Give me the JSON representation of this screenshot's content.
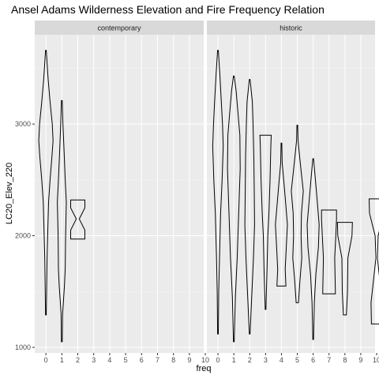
{
  "chart_data": {
    "type": "violin",
    "title": "Ansel Adams Wilderness Elevation and Fire Frequency Relation",
    "xlabel": "freq",
    "ylabel": "LC20_Elev_220",
    "x_ticks": [
      "0",
      "1",
      "2",
      "3",
      "4",
      "5",
      "6",
      "7",
      "8",
      "9",
      "10"
    ],
    "y_ticks": [
      1000,
      2000,
      3000
    ],
    "ylim": [
      950,
      3800
    ],
    "grid": true,
    "panels": [
      {
        "name": "contemporary",
        "violins": [
          {
            "freq": 0,
            "profile": [
              [
                1290,
                0.05
              ],
              [
                1800,
                0.15
              ],
              [
                2300,
                0.35
              ],
              [
                2500,
                0.55
              ],
              [
                2700,
                0.8
              ],
              [
                2850,
                0.95
              ],
              [
                3000,
                0.85
              ],
              [
                3200,
                0.55
              ],
              [
                3400,
                0.3
              ],
              [
                3550,
                0.15
              ],
              [
                3660,
                0.05
              ]
            ]
          },
          {
            "freq": 1,
            "profile": [
              [
                1050,
                0.05
              ],
              [
                1300,
                0.1
              ],
              [
                1550,
                0.35
              ],
              [
                1700,
                0.45
              ],
              [
                2000,
                0.5
              ],
              [
                2300,
                0.6
              ],
              [
                2500,
                0.45
              ],
              [
                2750,
                0.3
              ],
              [
                3000,
                0.15
              ],
              [
                3210,
                0.05
              ]
            ]
          },
          {
            "freq": 2,
            "profile": [
              [
                1970,
                0.95
              ],
              [
                2050,
                0.95
              ],
              [
                2150,
                0.2
              ],
              [
                2250,
                0.95
              ],
              [
                2320,
                0.95
              ]
            ]
          }
        ]
      },
      {
        "name": "historic",
        "violins": [
          {
            "freq": 0,
            "profile": [
              [
                1120,
                0.05
              ],
              [
                1500,
                0.1
              ],
              [
                1800,
                0.2
              ],
              [
                2200,
                0.35
              ],
              [
                2500,
                0.55
              ],
              [
                2800,
                0.7
              ],
              [
                3000,
                0.6
              ],
              [
                3200,
                0.45
              ],
              [
                3450,
                0.25
              ],
              [
                3660,
                0.05
              ]
            ]
          },
          {
            "freq": 1,
            "profile": [
              [
                1050,
                0.05
              ],
              [
                1450,
                0.2
              ],
              [
                1800,
                0.45
              ],
              [
                2200,
                0.65
              ],
              [
                2600,
                0.85
              ],
              [
                2900,
                0.8
              ],
              [
                3100,
                0.55
              ],
              [
                3300,
                0.3
              ],
              [
                3430,
                0.05
              ]
            ]
          },
          {
            "freq": 2,
            "profile": [
              [
                1120,
                0.05
              ],
              [
                1500,
                0.3
              ],
              [
                1800,
                0.5
              ],
              [
                2100,
                0.65
              ],
              [
                2400,
                0.6
              ],
              [
                2700,
                0.55
              ],
              [
                3000,
                0.45
              ],
              [
                3200,
                0.35
              ],
              [
                3400,
                0.05
              ]
            ]
          },
          {
            "freq": 3,
            "profile": [
              [
                1340,
                0.05
              ],
              [
                1700,
                0.2
              ],
              [
                2000,
                0.3
              ],
              [
                2200,
                0.45
              ],
              [
                2500,
                0.6
              ],
              [
                2800,
                0.7
              ],
              [
                2900,
                0.75
              ]
            ]
          },
          {
            "freq": 4,
            "profile": [
              [
                1550,
                0.6
              ],
              [
                1700,
                0.5
              ],
              [
                1900,
                0.65
              ],
              [
                2100,
                0.8
              ],
              [
                2300,
                0.55
              ],
              [
                2500,
                0.3
              ],
              [
                2650,
                0.1
              ],
              [
                2830,
                0.05
              ]
            ]
          },
          {
            "freq": 5,
            "profile": [
              [
                1400,
                0.15
              ],
              [
                1600,
                0.35
              ],
              [
                1800,
                0.6
              ],
              [
                2000,
                0.5
              ],
              [
                2200,
                0.55
              ],
              [
                2400,
                0.8
              ],
              [
                2650,
                0.4
              ],
              [
                2850,
                0.1
              ],
              [
                2990,
                0.05
              ]
            ]
          },
          {
            "freq": 6,
            "profile": [
              [
                1070,
                0.05
              ],
              [
                1400,
                0.15
              ],
              [
                1650,
                0.35
              ],
              [
                1900,
                0.7
              ],
              [
                2100,
                0.8
              ],
              [
                2300,
                0.55
              ],
              [
                2500,
                0.3
              ],
              [
                2690,
                0.05
              ]
            ]
          },
          {
            "freq": 7,
            "profile": [
              [
                1480,
                0.85
              ],
              [
                1800,
                0.75
              ],
              [
                2000,
                0.9
              ],
              [
                2150,
                1.0
              ],
              [
                2230,
                1.0
              ]
            ]
          },
          {
            "freq": 8,
            "profile": [
              [
                1290,
                0.2
              ],
              [
                1500,
                0.35
              ],
              [
                1800,
                0.4
              ],
              [
                2000,
                0.95
              ],
              [
                2120,
                1.0
              ]
            ]
          },
          {
            "freq": 10,
            "profile": [
              [
                1210,
                0.7
              ],
              [
                1400,
                0.75
              ],
              [
                1800,
                0.1
              ],
              [
                2000,
                0.2
              ],
              [
                2200,
                0.95
              ],
              [
                2330,
                1.0
              ]
            ]
          }
        ]
      }
    ]
  }
}
